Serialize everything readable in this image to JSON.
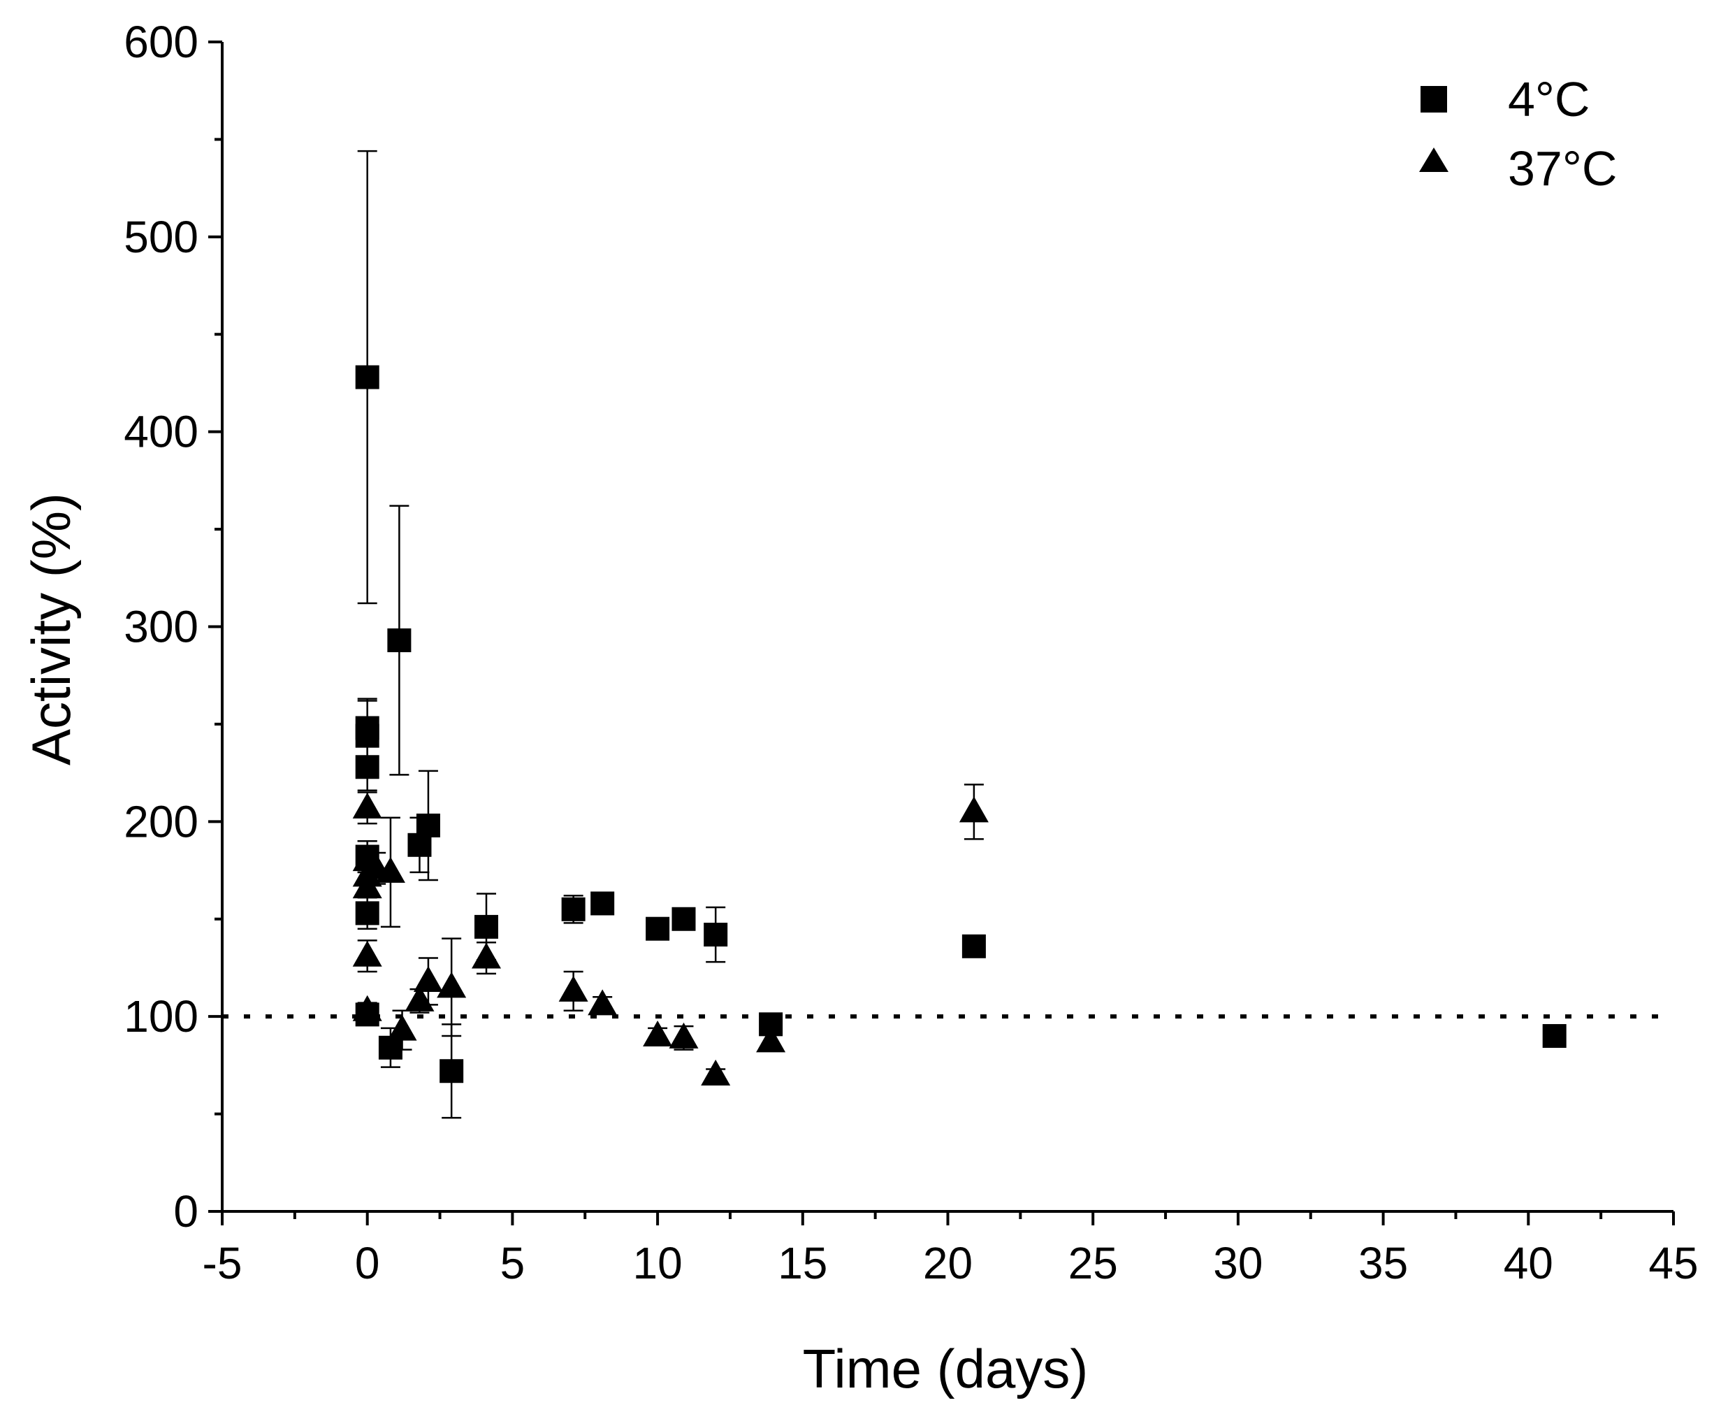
{
  "chart_data": {
    "type": "scatter",
    "title": "",
    "xlabel": "Time (days)",
    "ylabel": "Activity (%)",
    "xlim": [
      -5,
      45
    ],
    "ylim": [
      0,
      600
    ],
    "xticks": [
      -5,
      0,
      5,
      10,
      15,
      20,
      25,
      30,
      35,
      40,
      45
    ],
    "yticks": [
      0,
      100,
      200,
      300,
      400,
      500,
      600
    ],
    "reference_line": {
      "y": 100,
      "style": "dotted"
    },
    "legend_position": "top-right",
    "series": [
      {
        "name": "4°C",
        "marker": "square",
        "points": [
          {
            "x": 0,
            "y": 428,
            "err": 116
          },
          {
            "x": 0,
            "y": 248,
            "err": 15
          },
          {
            "x": 0,
            "y": 244,
            "err": 18
          },
          {
            "x": 0,
            "y": 228,
            "err": 12
          },
          {
            "x": 0,
            "y": 182,
            "err": 8
          },
          {
            "x": 0,
            "y": 153,
            "err": 8
          },
          {
            "x": 0,
            "y": 101,
            "err": 5
          },
          {
            "x": 0.8,
            "y": 84,
            "err": 10
          },
          {
            "x": 1.1,
            "y": 293,
            "err": 69
          },
          {
            "x": 1.8,
            "y": 188,
            "err": 14
          },
          {
            "x": 2.1,
            "y": 198,
            "err": 28
          },
          {
            "x": 2.9,
            "y": 72,
            "err": 24
          },
          {
            "x": 4.1,
            "y": 146,
            "err": 17
          },
          {
            "x": 7.1,
            "y": 155,
            "err": 7
          },
          {
            "x": 8.1,
            "y": 158,
            "err": 4
          },
          {
            "x": 10,
            "y": 145,
            "err": 4
          },
          {
            "x": 10.9,
            "y": 150,
            "err": 4
          },
          {
            "x": 12,
            "y": 142,
            "err": 14
          },
          {
            "x": 13.9,
            "y": 96,
            "err": 5
          },
          {
            "x": 20.9,
            "y": 136,
            "err": 4
          },
          {
            "x": 40.9,
            "y": 90,
            "err": 4
          }
        ]
      },
      {
        "name": "37°C",
        "marker": "triangle",
        "points": [
          {
            "x": 0,
            "y": 207,
            "err": 8
          },
          {
            "x": 0,
            "y": 180,
            "err": 10
          },
          {
            "x": 0,
            "y": 172,
            "err": 10
          },
          {
            "x": 0,
            "y": 166,
            "err": 8
          },
          {
            "x": 0,
            "y": 131,
            "err": 8
          },
          {
            "x": 0,
            "y": 103,
            "err": 4
          },
          {
            "x": 0.3,
            "y": 176,
            "err": 8
          },
          {
            "x": 0.8,
            "y": 174,
            "err": 28
          },
          {
            "x": 1.2,
            "y": 93,
            "err": 10
          },
          {
            "x": 1.8,
            "y": 108,
            "err": 6
          },
          {
            "x": 2.1,
            "y": 118,
            "err": 12
          },
          {
            "x": 2.9,
            "y": 115,
            "err": 25
          },
          {
            "x": 4.1,
            "y": 130,
            "err": 8
          },
          {
            "x": 7.1,
            "y": 113,
            "err": 10
          },
          {
            "x": 8.1,
            "y": 106,
            "err": 4
          },
          {
            "x": 10,
            "y": 90,
            "err": 4
          },
          {
            "x": 10.9,
            "y": 89,
            "err": 6
          },
          {
            "x": 12,
            "y": 70,
            "err": 3
          },
          {
            "x": 13.9,
            "y": 87,
            "err": 4
          },
          {
            "x": 20.9,
            "y": 205,
            "err": 14
          }
        ]
      }
    ]
  }
}
